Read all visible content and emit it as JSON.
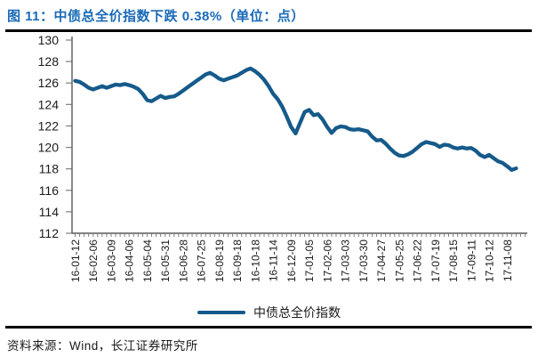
{
  "header": {
    "title": "图 11：中债总全价指数下跌 0.38%（单位：点）"
  },
  "chart_data": {
    "type": "line",
    "title": "中债总全价指数下跌 0.38%（单位：点）",
    "xlabel": "",
    "ylabel": "",
    "unit": "点",
    "ylim": [
      112,
      130
    ],
    "yticks": [
      130,
      128,
      126,
      124,
      122,
      120,
      118,
      116,
      114,
      112
    ],
    "grid": false,
    "legend_position": "bottom-center",
    "categories": [
      "16-01-12",
      "16-02-06",
      "16-03-09",
      "16-04-06",
      "16-05-04",
      "16-05-31",
      "16-06-28",
      "16-07-25",
      "16-08-19",
      "16-09-18",
      "16-10-18",
      "16-11-14",
      "16-12-09",
      "17-01-05",
      "17-02-06",
      "17-03-03",
      "17-03-30",
      "17-04-27",
      "17-05-25",
      "17-06-22",
      "17-07-19",
      "17-08-15",
      "17-09-11",
      "17-10-12",
      "17-11-08"
    ],
    "points_per_category": 4,
    "series": [
      {
        "name": "中债总全价指数",
        "values": [
          126.2,
          126.1,
          125.85,
          125.55,
          125.4,
          125.55,
          125.7,
          125.55,
          125.7,
          125.85,
          125.8,
          125.9,
          125.8,
          125.65,
          125.45,
          125.0,
          124.4,
          124.3,
          124.55,
          124.8,
          124.6,
          124.7,
          124.75,
          125.0,
          125.3,
          125.6,
          125.9,
          126.2,
          126.5,
          126.8,
          126.95,
          126.7,
          126.4,
          126.25,
          126.4,
          126.55,
          126.7,
          126.95,
          127.2,
          127.35,
          127.1,
          126.75,
          126.3,
          125.7,
          125.0,
          124.5,
          123.8,
          122.9,
          121.9,
          121.3,
          122.3,
          123.3,
          123.5,
          123.0,
          123.1,
          122.6,
          121.9,
          121.35,
          121.8,
          121.95,
          121.9,
          121.7,
          121.65,
          121.7,
          121.6,
          121.5,
          121.0,
          120.65,
          120.7,
          120.35,
          119.9,
          119.5,
          119.25,
          119.2,
          119.35,
          119.6,
          119.95,
          120.3,
          120.5,
          120.4,
          120.3,
          120.05,
          120.25,
          120.2,
          120.0,
          119.9,
          120.0,
          119.9,
          119.95,
          119.7,
          119.3,
          119.1,
          119.3,
          119.0,
          118.7,
          118.55,
          118.25,
          117.9,
          118.05
        ]
      }
    ]
  },
  "footer": {
    "source": "资料来源：Wind，长江证券研究所"
  },
  "colors": {
    "title": "#1a6ab8",
    "line": "#155a8a",
    "axis": "#7f7f7f",
    "text": "#1a1a1a",
    "rule": "#000000"
  }
}
